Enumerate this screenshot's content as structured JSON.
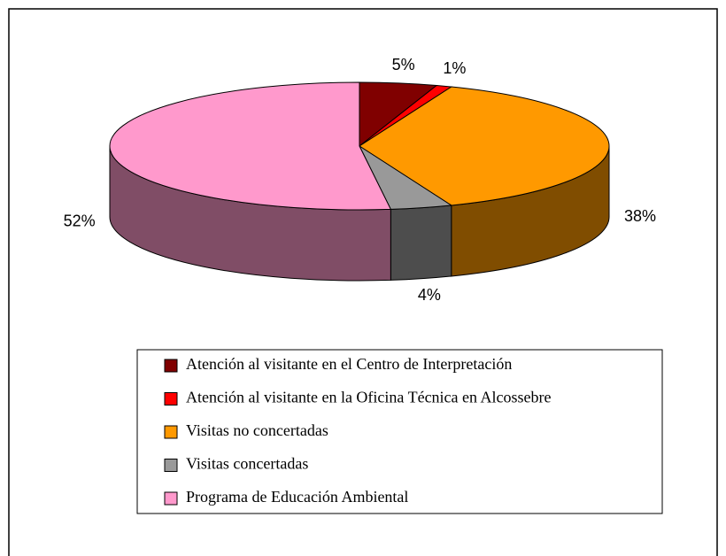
{
  "chart_data": {
    "type": "pie3d",
    "categories": [
      "Atención al visitante en el Centro de Interpretación",
      "Atención al visitante en la Oficina Técnica en Alcossebre",
      "Visitas no concertadas",
      "Visitas concertadas",
      "Programa de Educación Ambiental"
    ],
    "values": [
      5,
      1,
      38,
      4,
      52
    ],
    "value_labels": [
      "5%",
      "1%",
      "38%",
      "4%",
      "52%"
    ],
    "colors": [
      "#800000",
      "#ff0000",
      "#ff9900",
      "#999999",
      "#ff99cc"
    ],
    "legend": "bottom"
  }
}
